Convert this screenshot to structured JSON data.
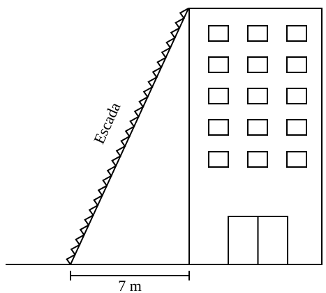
{
  "labels": {
    "ladder": "Escada",
    "distance": "7 m"
  }
}
